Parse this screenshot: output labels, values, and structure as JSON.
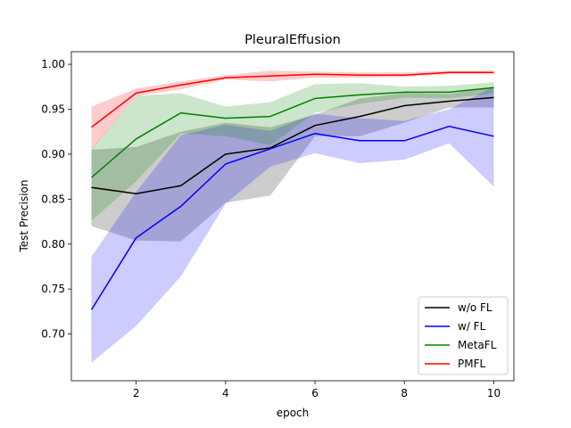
{
  "chart_data": {
    "type": "line",
    "title": "PleuralEffusion",
    "xlabel": "epoch",
    "ylabel": "Test Precision",
    "xlim": [
      0.55,
      10.45
    ],
    "ylim": [
      0.648,
      1.014
    ],
    "xticks": [
      2,
      4,
      6,
      8,
      10
    ],
    "yticks": [
      0.7,
      0.75,
      0.8,
      0.85,
      0.9,
      0.95,
      1.0
    ],
    "ytick_labels": [
      "0.70",
      "0.75",
      "0.80",
      "0.85",
      "0.90",
      "0.95",
      "1.00"
    ],
    "grid": false,
    "legend_position": "bottom-right",
    "x": [
      1,
      2,
      3,
      4,
      5,
      6,
      7,
      8,
      9,
      10
    ],
    "series": [
      {
        "name": "w/o FL",
        "color": "#000000",
        "values": [
          0.863,
          0.856,
          0.865,
          0.9,
          0.907,
          0.932,
          0.942,
          0.954,
          0.959,
          0.963
        ],
        "lower": [
          0.82,
          0.804,
          0.803,
          0.846,
          0.854,
          0.92,
          0.92,
          0.935,
          0.952,
          0.952
        ],
        "upper": [
          0.905,
          0.908,
          0.925,
          0.935,
          0.93,
          0.944,
          0.962,
          0.968,
          0.967,
          0.975
        ]
      },
      {
        "name": "w/ FL",
        "color": "#0000ff",
        "values": [
          0.727,
          0.807,
          0.842,
          0.889,
          0.906,
          0.923,
          0.915,
          0.915,
          0.931,
          0.92
        ],
        "lower": [
          0.668,
          0.709,
          0.764,
          0.845,
          0.886,
          0.901,
          0.89,
          0.894,
          0.912,
          0.864
        ],
        "upper": [
          0.786,
          0.858,
          0.921,
          0.933,
          0.926,
          0.945,
          0.94,
          0.937,
          0.95,
          0.975
        ]
      },
      {
        "name": "MetaFL",
        "color": "#008000",
        "values": [
          0.874,
          0.917,
          0.946,
          0.94,
          0.942,
          0.962,
          0.966,
          0.969,
          0.969,
          0.974
        ],
        "lower": [
          0.826,
          0.87,
          0.923,
          0.92,
          0.91,
          0.946,
          0.956,
          0.963,
          0.962,
          0.968
        ],
        "upper": [
          0.906,
          0.965,
          0.968,
          0.953,
          0.958,
          0.978,
          0.979,
          0.975,
          0.976,
          0.98
        ]
      },
      {
        "name": "PMFL",
        "color": "#ff0000",
        "values": [
          0.93,
          0.968,
          0.977,
          0.985,
          0.987,
          0.989,
          0.988,
          0.988,
          0.991,
          0.991
        ],
        "lower": [
          0.905,
          0.965,
          0.972,
          0.983,
          0.981,
          0.985,
          0.985,
          0.986,
          0.989,
          0.989
        ],
        "upper": [
          0.953,
          0.973,
          0.981,
          0.988,
          0.993,
          0.992,
          0.991,
          0.991,
          0.993,
          0.993
        ]
      }
    ]
  }
}
